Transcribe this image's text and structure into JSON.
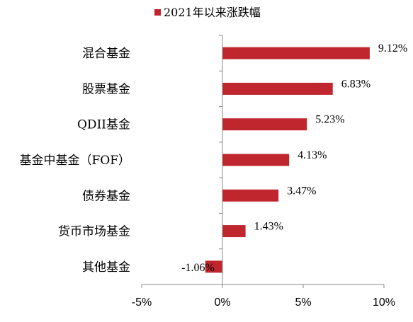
{
  "chart_data": {
    "type": "bar",
    "orientation": "horizontal",
    "legend": {
      "label": "2021年以来涨跌幅",
      "position": "top"
    },
    "categories": [
      "混合基金",
      "股票基金",
      "QDII基金",
      "基金中基金（FOF）",
      "债券基金",
      "货币市场基金",
      "其他基金"
    ],
    "series": [
      {
        "name": "2021年以来涨跌幅",
        "values": [
          9.12,
          6.83,
          5.23,
          4.13,
          3.47,
          1.43,
          -1.06
        ],
        "labels": [
          "9.12%",
          "6.83%",
          "5.23%",
          "4.13%",
          "3.47%",
          "1.43%",
          "-1.06%"
        ],
        "color": "#c0262d"
      }
    ],
    "xaxis": {
      "min": -5,
      "max": 10,
      "ticks": [
        -5,
        0,
        5,
        10
      ],
      "tick_labels": [
        "-5%",
        "0%",
        "5%",
        "10%"
      ]
    },
    "grid": false
  }
}
